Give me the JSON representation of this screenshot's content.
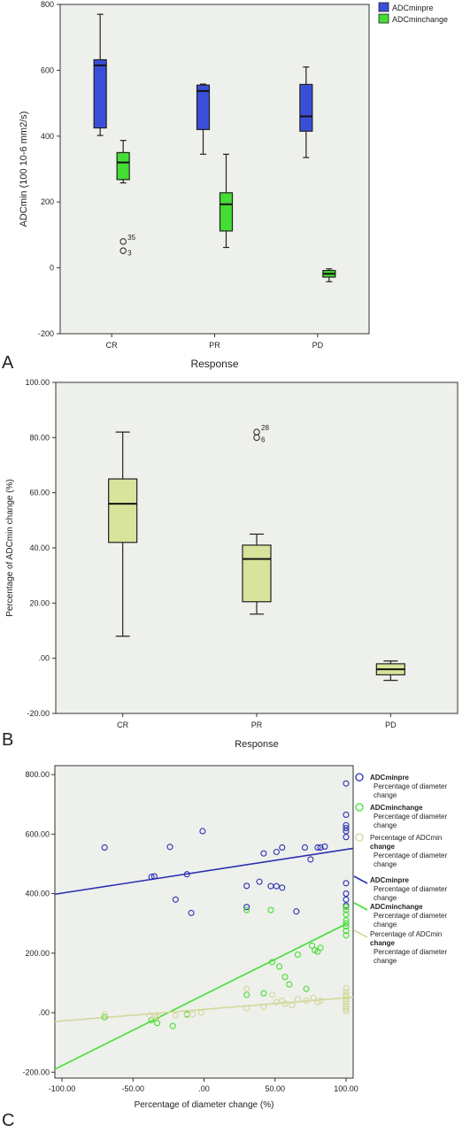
{
  "chart_data": [
    {
      "type": "box",
      "panel_label": "A",
      "ylabel": "ADCmin (100 10-6 mm2/s)",
      "xlabel": "Response",
      "categories": [
        "CR",
        "PR",
        "PD"
      ],
      "yticks": [
        "-200",
        "0",
        "200",
        "400",
        "600",
        "800"
      ],
      "ylim": [
        -200,
        800
      ],
      "legend": {
        "placement": "top-right",
        "items": [
          "ADCminpre",
          "ADCminchange"
        ]
      },
      "series": [
        {
          "name": "ADCminpre",
          "color": "#3a4fd9",
          "boxes": [
            {
              "min": 402,
              "q1": 425,
              "median": 615,
              "q3": 632,
              "max": 770
            },
            {
              "min": 345,
              "q1": 420,
              "median": 537,
              "q3": 555,
              "max": 558
            },
            {
              "min": 335,
              "q1": 415,
              "median": 460,
              "q3": 557,
              "max": 610
            }
          ]
        },
        {
          "name": "ADCminchange",
          "color": "#44dd33",
          "boxes": [
            {
              "min": 258,
              "q1": 268,
              "median": 320,
              "q3": 350,
              "max": 387
            },
            {
              "min": 62,
              "q1": 112,
              "median": 193,
              "q3": 228,
              "max": 345
            },
            {
              "min": -42,
              "q1": -28,
              "median": -18,
              "q3": -8,
              "max": -3
            }
          ]
        }
      ],
      "outliers": [
        {
          "category": "CR",
          "series": "ADCminchange",
          "value": 80,
          "label": "35"
        },
        {
          "category": "CR",
          "series": "ADCminchange",
          "value": 52,
          "label": "3"
        }
      ],
      "grid": false
    },
    {
      "type": "box",
      "panel_label": "B",
      "ylabel": "Percentage of ADCmin change (%)",
      "xlabel": "Response",
      "categories": [
        "CR",
        "PR",
        "PD"
      ],
      "yticks": [
        "-20.00",
        ".00",
        "20.00",
        "40.00",
        "60.00",
        "80.00",
        "100.00"
      ],
      "ylim": [
        -20,
        100
      ],
      "color": "#d8e39b",
      "boxes": [
        {
          "min": 8,
          "q1": 42,
          "median": 56,
          "q3": 65,
          "max": 82
        },
        {
          "min": 16,
          "q1": 20.5,
          "median": 36,
          "q3": 41,
          "max": 45
        },
        {
          "min": -8,
          "q1": -6,
          "median": -4,
          "q3": -2,
          "max": -1
        }
      ],
      "outliers": [
        {
          "category": "PR",
          "value": 82,
          "label": "28"
        },
        {
          "category": "PR",
          "value": 80,
          "label": "6"
        }
      ],
      "grid": false
    },
    {
      "type": "scatter",
      "panel_label": "C",
      "xlabel": "Percentage of diameter change (%)",
      "xticks": [
        "-100.00",
        "-50.00",
        ".00",
        "50.00",
        "100.00"
      ],
      "yticks": [
        "-200.00",
        ".00",
        "200.00",
        "400.00",
        "600.00",
        "800.00"
      ],
      "xlim": [
        -105,
        105
      ],
      "ylim": [
        -220,
        830
      ],
      "legend": {
        "placement": "right",
        "items": [
          {
            "title": "ADCminpre",
            "sub": "Percentage of diameter change",
            "kind": "marker",
            "color": "#2a30b0"
          },
          {
            "title": "ADCminchange",
            "sub": "Percentage of diameter change",
            "kind": "marker",
            "color": "#44dd33"
          },
          {
            "title": "change",
            "sub": "Percentage of diameter change",
            "pre": "Percentage of ADCmin",
            "kind": "marker",
            "color": "#d4d79a"
          },
          {
            "title": "ADCminpre",
            "sub": "Percentage of diameter change",
            "kind": "line",
            "color": "#2a30b0"
          },
          {
            "title": "ADCminchange",
            "sub": "Percentage of diameter change",
            "kind": "line",
            "color": "#44dd33"
          },
          {
            "title": "change",
            "sub": "Percentage of diameter change",
            "pre": "Percentage of ADCmin",
            "kind": "line",
            "color": "#d4d79a"
          }
        ]
      },
      "series": [
        {
          "name": "ADCminpre",
          "color": "#2a30b0",
          "fit": {
            "x0": -105,
            "y0": 398,
            "x1": 105,
            "y1": 552
          },
          "points": [
            [
              -70,
              555
            ],
            [
              -37,
              456
            ],
            [
              -35,
              458
            ],
            [
              -24,
              557
            ],
            [
              -20,
              380
            ],
            [
              -12,
              465
            ],
            [
              -9,
              335
            ],
            [
              -1,
              610
            ],
            [
              30,
              426
            ],
            [
              30,
              355
            ],
            [
              39,
              440
            ],
            [
              42,
              535
            ],
            [
              47,
              425
            ],
            [
              51,
              540
            ],
            [
              51,
              425
            ],
            [
              55,
              555
            ],
            [
              55,
              420
            ],
            [
              65,
              340
            ],
            [
              71,
              555
            ],
            [
              75,
              515
            ],
            [
              80,
              555
            ],
            [
              82,
              555
            ],
            [
              85,
              558
            ],
            [
              100,
              770
            ],
            [
              100,
              665
            ],
            [
              100,
              630
            ],
            [
              100,
              620
            ],
            [
              100,
              610
            ],
            [
              100,
              590
            ],
            [
              100,
              435
            ],
            [
              100,
              400
            ],
            [
              100,
              380
            ],
            [
              100,
              360
            ]
          ]
        },
        {
          "name": "ADCminchange",
          "color": "#44dd33",
          "fit": {
            "x0": -105,
            "y0": -190,
            "x1": 100,
            "y1": 298
          },
          "points": [
            [
              -70,
              -15
            ],
            [
              -37,
              -25
            ],
            [
              -33,
              -35
            ],
            [
              -22,
              -45
            ],
            [
              -12,
              -5
            ],
            [
              30,
              345
            ],
            [
              30,
              60
            ],
            [
              42,
              65
            ],
            [
              47,
              345
            ],
            [
              48,
              170
            ],
            [
              53,
              155
            ],
            [
              57,
              120
            ],
            [
              60,
              95
            ],
            [
              66,
              195
            ],
            [
              72,
              80
            ],
            [
              76,
              225
            ],
            [
              78,
              210
            ],
            [
              80,
              205
            ],
            [
              82,
              218
            ],
            [
              100,
              355
            ],
            [
              100,
              345
            ],
            [
              100,
              330
            ],
            [
              100,
              310
            ],
            [
              100,
              300
            ],
            [
              100,
              290
            ],
            [
              100,
              275
            ],
            [
              100,
              260
            ]
          ]
        },
        {
          "name": "Percentage of ADCmin change",
          "color": "#d4d79a",
          "fit": {
            "x0": -105,
            "y0": -30,
            "x1": 105,
            "y1": 52
          },
          "points": [
            [
              -70,
              -5
            ],
            [
              -38,
              -10
            ],
            [
              -35,
              -12
            ],
            [
              -33,
              -15
            ],
            [
              -20,
              -10
            ],
            [
              -12,
              -8
            ],
            [
              -8,
              -5
            ],
            [
              -2,
              0
            ],
            [
              30,
              80
            ],
            [
              30,
              15
            ],
            [
              42,
              20
            ],
            [
              48,
              60
            ],
            [
              51,
              35
            ],
            [
              55,
              40
            ],
            [
              57,
              30
            ],
            [
              62,
              25
            ],
            [
              66,
              45
            ],
            [
              72,
              40
            ],
            [
              77,
              50
            ],
            [
              80,
              35
            ],
            [
              82,
              40
            ],
            [
              100,
              82
            ],
            [
              100,
              70
            ],
            [
              100,
              60
            ],
            [
              100,
              55
            ],
            [
              100,
              45
            ],
            [
              100,
              38
            ],
            [
              100,
              30
            ],
            [
              100,
              20
            ],
            [
              100,
              12
            ],
            [
              100,
              5
            ]
          ]
        }
      ],
      "grid": false
    }
  ]
}
